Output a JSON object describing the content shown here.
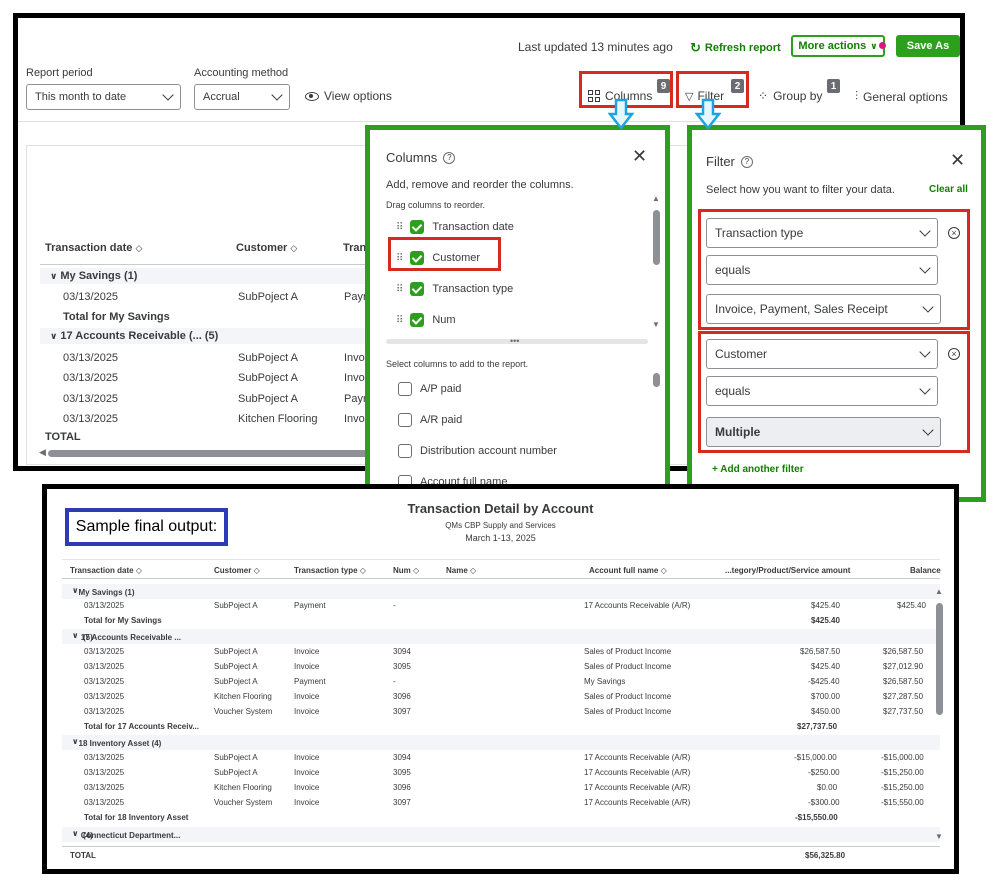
{
  "toolbar": {
    "last_updated": "Last updated 13 minutes ago",
    "refresh": "Refresh report",
    "more_actions": "More actions",
    "save_as": "Save As",
    "columns": "Columns",
    "columns_badge": "9",
    "filter": "Filter",
    "filter_badge": "2",
    "group_by": "Group by",
    "group_badge": "1",
    "general_options": "General options",
    "view_options": "View options"
  },
  "report_period": {
    "label": "Report period",
    "value": "This month to date"
  },
  "accounting_method": {
    "label": "Accounting method",
    "value": "Accrual"
  },
  "report_table": {
    "headers": [
      "Transaction date",
      "Customer",
      "Tran"
    ],
    "group1": "My Savings (1)",
    "row1": [
      "03/13/2025",
      "SubPoject A",
      "Paym"
    ],
    "total1": "Total for My Savings",
    "group2": "17 Accounts Receivable (... (5)",
    "rows2": [
      [
        "03/13/2025",
        "SubPoject A",
        "Invo"
      ],
      [
        "03/13/2025",
        "SubPoject A",
        "Invo"
      ],
      [
        "03/13/2025",
        "SubPoject A",
        "Paym"
      ],
      [
        "03/13/2025",
        "Kitchen Flooring",
        "Invo"
      ]
    ],
    "total": "TOTAL"
  },
  "columns_panel": {
    "title": "Columns",
    "subtitle": "Add, remove and reorder the columns.",
    "drag_hint": "Drag columns to reorder.",
    "selected": [
      "Transaction date",
      "Customer",
      "Transaction type",
      "Num"
    ],
    "add_hint": "Select columns to add to the report.",
    "available": [
      "A/P paid",
      "A/R paid",
      "Distribution account number",
      "Account full name"
    ]
  },
  "filter_panel": {
    "title": "Filter",
    "subtitle": "Select how you want to filter your data.",
    "clear_all": "Clear all",
    "filter1": {
      "field": "Transaction type",
      "op": "equals",
      "value": "Invoice, Payment, Sales Receipt"
    },
    "filter2": {
      "field": "Customer",
      "op": "equals",
      "value": "Multiple"
    },
    "add_filter": "+ Add another filter"
  },
  "sample_label": "Sample final output:",
  "output": {
    "title": "Transaction Detail by Account",
    "company": "QMs CBP Supply and Services",
    "period": "March 1-13, 2025",
    "headers": [
      "Transaction date",
      "Customer",
      "Transaction type",
      "Num",
      "Name",
      "Account full name",
      "...tegory/Product/Service amount",
      "Balance"
    ],
    "g1": "My Savings (1)",
    "g1_rows": [
      [
        "03/13/2025",
        "SubPoject A",
        "Payment",
        "-",
        "17 Accounts Receivable (A/R)",
        "$425.40",
        "$425.40"
      ]
    ],
    "g1_total": [
      "Total for My Savings",
      "$425.40"
    ],
    "g2": "17 Accounts Receivable ...",
    "g2_count": "(5)",
    "g2_rows": [
      [
        "03/13/2025",
        "SubPoject A",
        "Invoice",
        "3094",
        "Sales of Product Income",
        "$26,587.50",
        "$26,587.50"
      ],
      [
        "03/13/2025",
        "SubPoject A",
        "Invoice",
        "3095",
        "Sales of Product Income",
        "$425.40",
        "$27,012.90"
      ],
      [
        "03/13/2025",
        "SubPoject A",
        "Payment",
        "-",
        "My Savings",
        "-$425.40",
        "$26,587.50"
      ],
      [
        "03/13/2025",
        "Kitchen Flooring",
        "Invoice",
        "3096",
        "Sales of Product Income",
        "$700.00",
        "$27,287.50"
      ],
      [
        "03/13/2025",
        "Voucher System",
        "Invoice",
        "3097",
        "Sales of Product Income",
        "$450.00",
        "$27,737.50"
      ]
    ],
    "g2_total": [
      "Total for 17 Accounts Receiv...",
      "$27,737.50"
    ],
    "g3": "18 Inventory Asset (4)",
    "g3_rows": [
      [
        "03/13/2025",
        "SubPoject A",
        "Invoice",
        "3094",
        "17 Accounts Receivable (A/R)",
        "-$15,000.00",
        "-$15,000.00"
      ],
      [
        "03/13/2025",
        "SubPoject A",
        "Invoice",
        "3095",
        "17 Accounts Receivable (A/R)",
        "-$250.00",
        "-$15,250.00"
      ],
      [
        "03/13/2025",
        "Kitchen Flooring",
        "Invoice",
        "3096",
        "17 Accounts Receivable (A/R)",
        "$0.00",
        "-$15,250.00"
      ],
      [
        "03/13/2025",
        "Voucher System",
        "Invoice",
        "3097",
        "17 Accounts Receivable (A/R)",
        "-$300.00",
        "-$15,550.00"
      ]
    ],
    "g3_total": [
      "Total for 18 Inventory Asset",
      "-$15,550.00"
    ],
    "g4": "Connecticut Department...",
    "g4_count": "(4)",
    "total": [
      "TOTAL",
      "$56,325.80"
    ]
  },
  "colors": {
    "accent_green": "#2ca01c",
    "highlight_red": "#d52b1e",
    "arrow_blue": "#1fa2e0",
    "label_blue": "#2d3bb5"
  }
}
